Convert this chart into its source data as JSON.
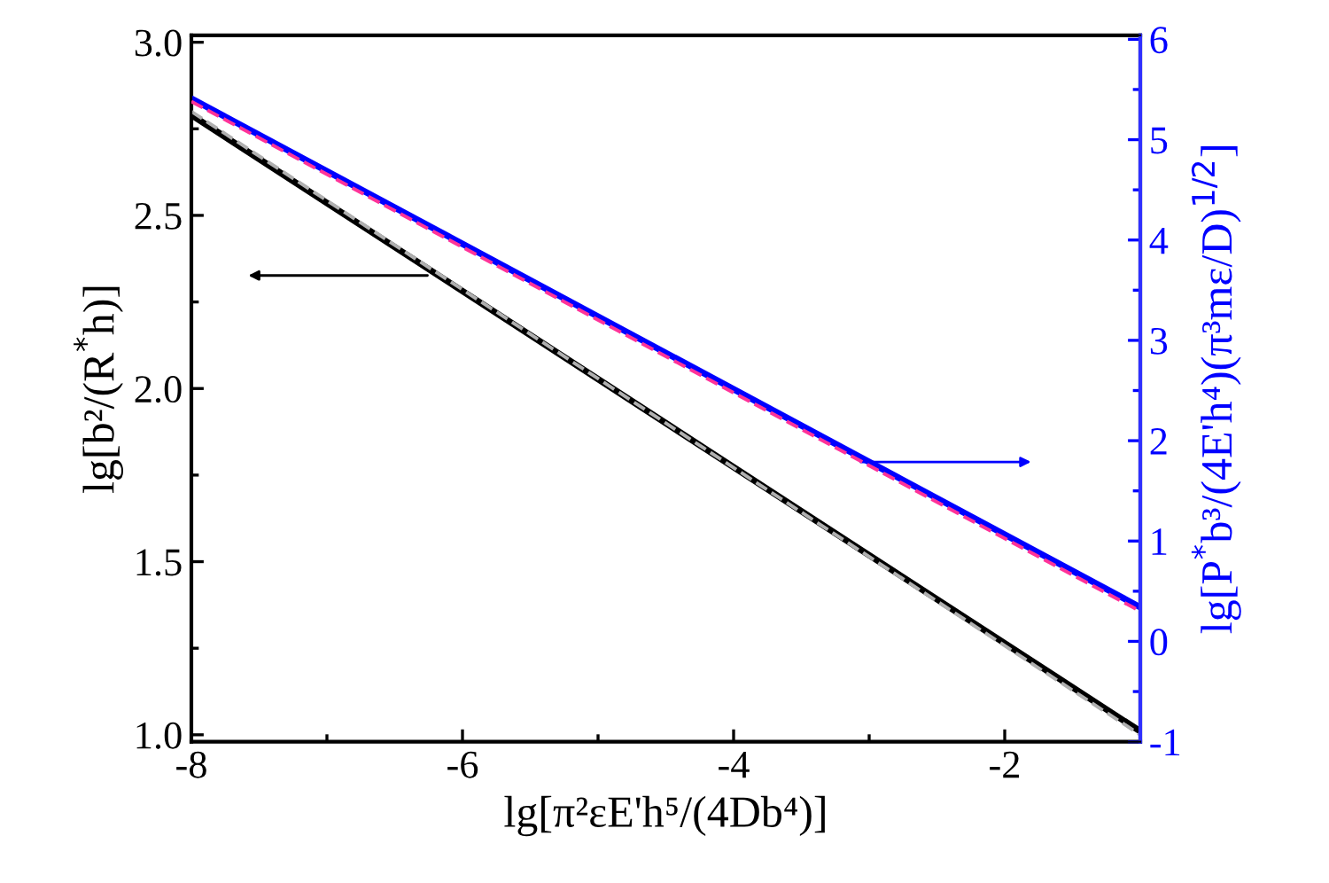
{
  "chart_data": {
    "type": "line",
    "xlabel": "lg[π²εE'h⁵/(4Db⁴)]",
    "ylabel": "lg[b²/(R$^{*}$h)]",
    "y2label": "lg[P$^{*}$b³/(4E'h⁴)(π³mε/D)$^{1/2}$]",
    "x": [
      -8,
      -1
    ],
    "series": [
      {
        "color": "#b0b0b0",
        "line_style": "dashed",
        "values": [
          2.8,
          1.0
        ]
      },
      {
        "color": "#000000",
        "line_style": "solid",
        "values": [
          2.79,
          1.01
        ]
      },
      {
        "color": "#0000ff",
        "line_style": "solid",
        "axis": "y2",
        "values": [
          5.41,
          0.34
        ]
      },
      {
        "color": "#ff3399",
        "line_style": "dashed",
        "axis": "y2",
        "values": [
          5.38,
          0.3
        ]
      }
    ],
    "xlim": [
      -8,
      -1
    ],
    "xticks": [
      -8,
      -6,
      -4,
      -2
    ],
    "ylim": [
      0.98,
      3.02
    ],
    "yticks": [
      {
        "value": 1,
        "label": "1.0"
      },
      1.5,
      {
        "value": 2,
        "label": "2.0"
      },
      2.5,
      {
        "value": 3,
        "label": "3.0"
      }
    ],
    "y2lim": [
      -1,
      6.04
    ],
    "y2ticks": [
      -1,
      0,
      1,
      2,
      3,
      4,
      5,
      6
    ],
    "grid": false,
    "legend": false,
    "marker": "none"
  }
}
